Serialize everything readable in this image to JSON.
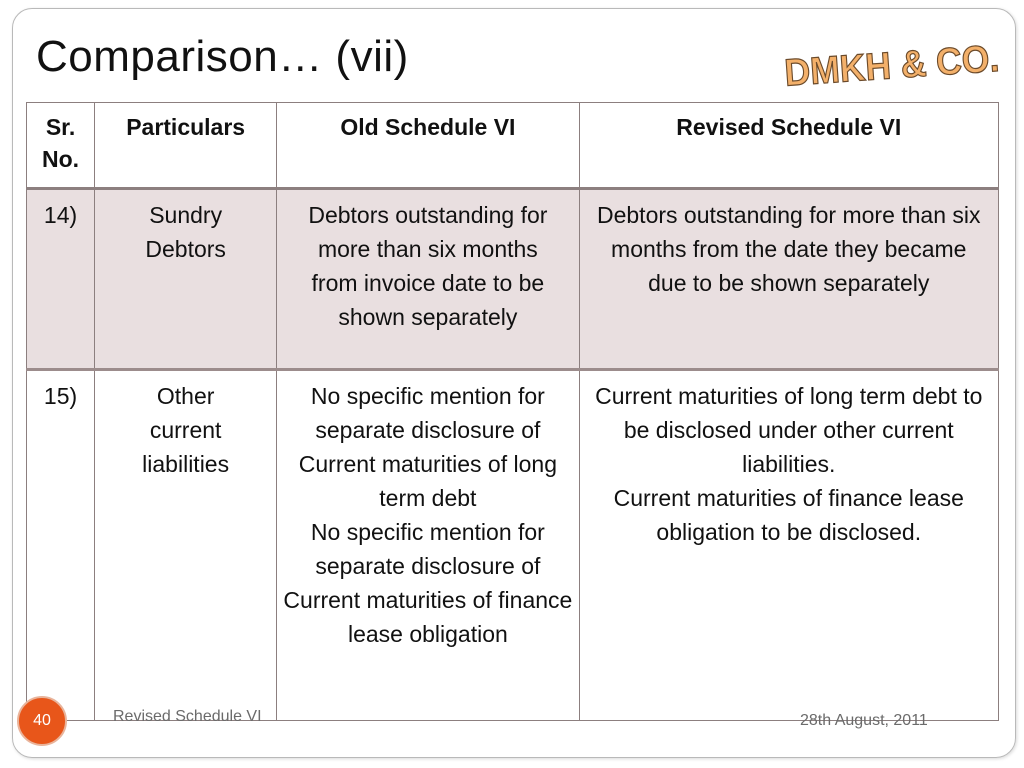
{
  "slide": {
    "title": "Comparison… (vii)",
    "logo_text": "DMKH & CO.",
    "page_number": "40",
    "footer_left": "Revised Schedule VI",
    "footer_right": "28th August, 2011"
  },
  "table": {
    "headers": [
      "Sr. No.",
      "Particulars",
      "Old Schedule VI",
      "Revised Schedule VI"
    ],
    "rows": [
      {
        "sr": "14)",
        "particulars": "Sundry Debtors",
        "old": "Debtors outstanding for more than six months from invoice date to be shown separately",
        "revised": "Debtors outstanding for more than six months from the date they became due to be shown separately"
      },
      {
        "sr": "15)",
        "particulars": "Other current liabilities",
        "old_1": "No specific mention for separate disclosure of Current maturities of long term debt",
        "old_2": "No specific mention for separate disclosure of Current maturities of finance lease obligation",
        "revised_1": "Current maturities of long term debt to be disclosed under other current liabilities.",
        "revised_2": "Current maturities of finance lease obligation to be disclosed."
      }
    ]
  },
  "colors": {
    "accent": "#e8561a",
    "row_shade": "#e9dfe0",
    "logo_fill": "#f3b06a"
  }
}
